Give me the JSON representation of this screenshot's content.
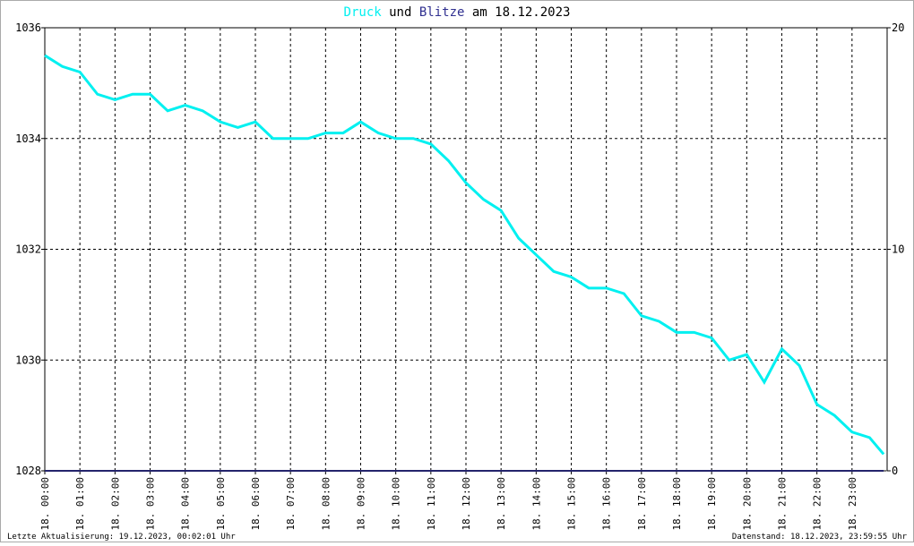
{
  "chart_data": {
    "type": "line",
    "title": {
      "connector": "und",
      "date_text": "am 18.12.2023"
    },
    "footer_left": "Letzte Aktualisierung: 19.12.2023, 00:02:01 Uhr",
    "footer_right": "Datenstand: 18.12.2023, 23:59:55 Uhr",
    "xlim": [
      0,
      24
    ],
    "xticks": [
      {
        "value": 0,
        "label": "18. 00:00"
      },
      {
        "value": 1,
        "label": "18. 01:00"
      },
      {
        "value": 2,
        "label": "18. 02:00"
      },
      {
        "value": 3,
        "label": "18. 03:00"
      },
      {
        "value": 4,
        "label": "18. 04:00"
      },
      {
        "value": 5,
        "label": "18. 05:00"
      },
      {
        "value": 6,
        "label": "18. 06:00"
      },
      {
        "value": 7,
        "label": "18. 07:00"
      },
      {
        "value": 8,
        "label": "18. 08:00"
      },
      {
        "value": 9,
        "label": "18. 09:00"
      },
      {
        "value": 10,
        "label": "18. 10:00"
      },
      {
        "value": 11,
        "label": "18. 11:00"
      },
      {
        "value": 12,
        "label": "18. 12:00"
      },
      {
        "value": 13,
        "label": "18. 13:00"
      },
      {
        "value": 14,
        "label": "18. 14:00"
      },
      {
        "value": 15,
        "label": "18. 15:00"
      },
      {
        "value": 16,
        "label": "18. 16:00"
      },
      {
        "value": 17,
        "label": "18. 17:00"
      },
      {
        "value": 18,
        "label": "18. 18:00"
      },
      {
        "value": 19,
        "label": "18. 19:00"
      },
      {
        "value": 20,
        "label": "18. 20:00"
      },
      {
        "value": 21,
        "label": "18. 21:00"
      },
      {
        "value": 22,
        "label": "18. 22:00"
      },
      {
        "value": 23,
        "label": "18. 23:00"
      }
    ],
    "ylim": [
      1028,
      1036
    ],
    "yticks": [
      1028,
      1030,
      1032,
      1034,
      1036
    ],
    "y2lim": [
      0,
      20
    ],
    "y2ticks": [
      0,
      10,
      20
    ],
    "grid": true,
    "series": [
      {
        "name": "Druck",
        "color": "#00f0f0",
        "x": [
          0,
          0.5,
          1,
          1.5,
          2,
          2.5,
          3,
          3.5,
          4,
          4.5,
          5,
          5.5,
          6,
          6.5,
          7,
          7.5,
          8,
          8.5,
          9,
          9.5,
          10,
          10.5,
          11,
          11.5,
          12,
          12.5,
          13,
          13.5,
          14,
          14.5,
          15,
          15.5,
          16,
          16.5,
          17,
          17.5,
          18,
          18.5,
          19,
          19.5,
          20,
          20.5,
          21,
          21.5,
          22,
          22.5,
          23,
          23.5,
          23.9
        ],
        "values": [
          1035.5,
          1035.3,
          1035.2,
          1034.8,
          1034.7,
          1034.8,
          1034.8,
          1034.5,
          1034.6,
          1034.5,
          1034.3,
          1034.2,
          1034.3,
          1034.0,
          1034.0,
          1034.0,
          1034.1,
          1034.1,
          1034.3,
          1034.1,
          1034.0,
          1034.0,
          1033.9,
          1033.6,
          1033.2,
          1032.9,
          1032.7,
          1032.2,
          1031.9,
          1031.6,
          1031.5,
          1031.3,
          1031.3,
          1031.2,
          1030.8,
          1030.7,
          1030.5,
          1030.5,
          1030.4,
          1030.0,
          1030.1,
          1029.6,
          1030.2,
          1029.9,
          1029.2,
          1029.0,
          1028.7,
          1028.6,
          1028.3
        ]
      },
      {
        "name": "Blitze",
        "color": "#303090",
        "axis": "y2",
        "x": [
          0,
          23.9
        ],
        "values": [
          0,
          0
        ]
      }
    ]
  }
}
